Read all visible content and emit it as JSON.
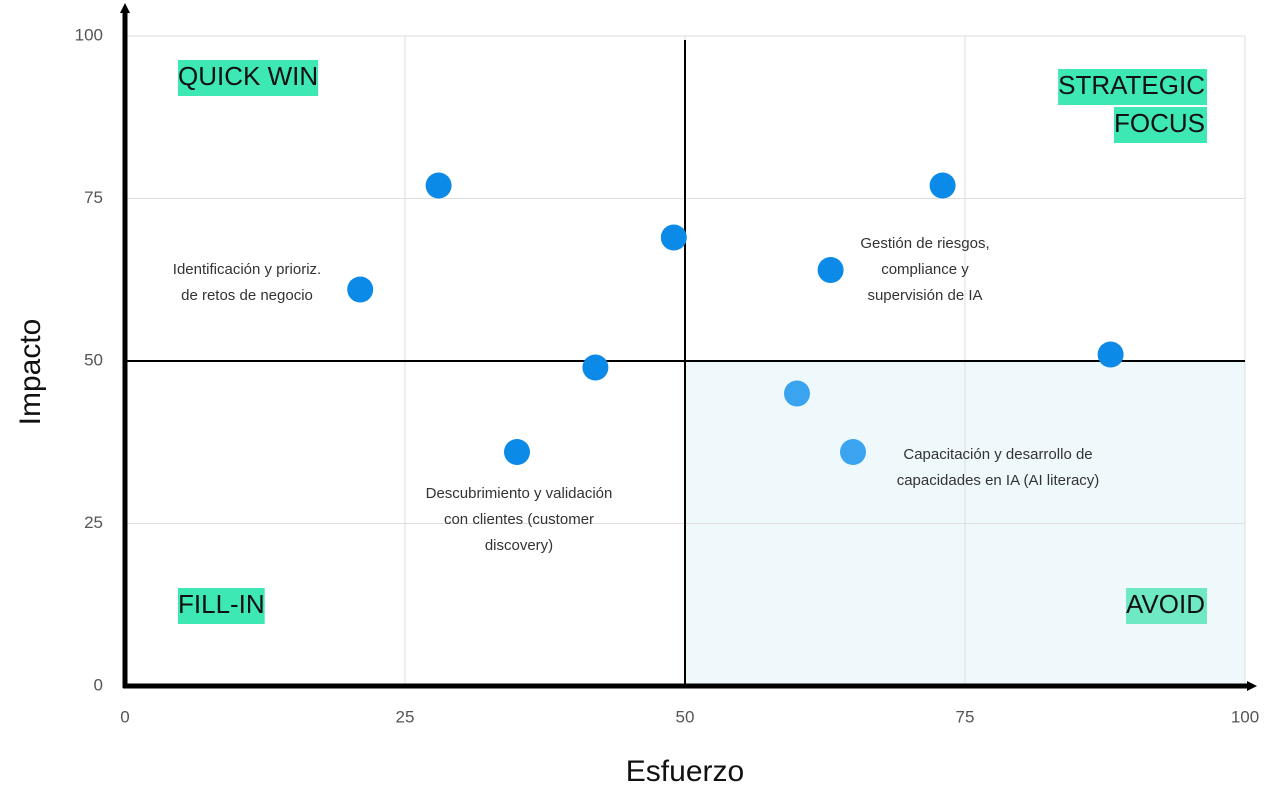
{
  "chart_data": {
    "type": "scatter",
    "x_label": "Esfuerzo",
    "y_label": "Impacto",
    "xlim": [
      0,
      100
    ],
    "ylim": [
      0,
      100
    ],
    "xticks": [
      0,
      25,
      50,
      75,
      100
    ],
    "yticks": [
      0,
      25,
      50,
      75,
      100
    ],
    "grid": true,
    "quadrant_lines": {
      "x": 50,
      "y": 50
    },
    "series": [
      {
        "color": "#0b8ae8",
        "x": [
          28,
          21,
          49,
          42,
          35,
          73,
          63,
          88,
          60,
          65
        ],
        "values": [
          77,
          61,
          69,
          49,
          36,
          77,
          64,
          51,
          45,
          36
        ],
        "colors": [
          "#0b8ae8",
          "#0b8ae8",
          "#0b8ae8",
          "#0b8ae8",
          "#0b8ae8",
          "#0b8ae8",
          "#0b8ae8",
          "#0b8ae8",
          "#3aa4f0",
          "#3aa4f0"
        ]
      }
    ],
    "annotations": [
      {
        "text": [
          "Identificación y prioriz.",
          "de retos de negocio"
        ]
      },
      {
        "text": [
          "Gestión de riesgos,",
          "compliance y",
          "supervisión de IA"
        ]
      },
      {
        "text": [
          "Descubrimiento y validación",
          "con clientes (customer",
          "discovery)"
        ]
      },
      {
        "text": [
          "Capacitación y desarrollo de",
          "capacidades en IA (AI literacy)"
        ]
      }
    ],
    "quadrant_labels": [
      {
        "text": [
          "QUICK WIN"
        ]
      },
      {
        "text": [
          "STRATEGIC",
          "FOCUS"
        ]
      },
      {
        "text": [
          "FILL-IN"
        ]
      },
      {
        "text": [
          "AVOID"
        ]
      }
    ]
  }
}
